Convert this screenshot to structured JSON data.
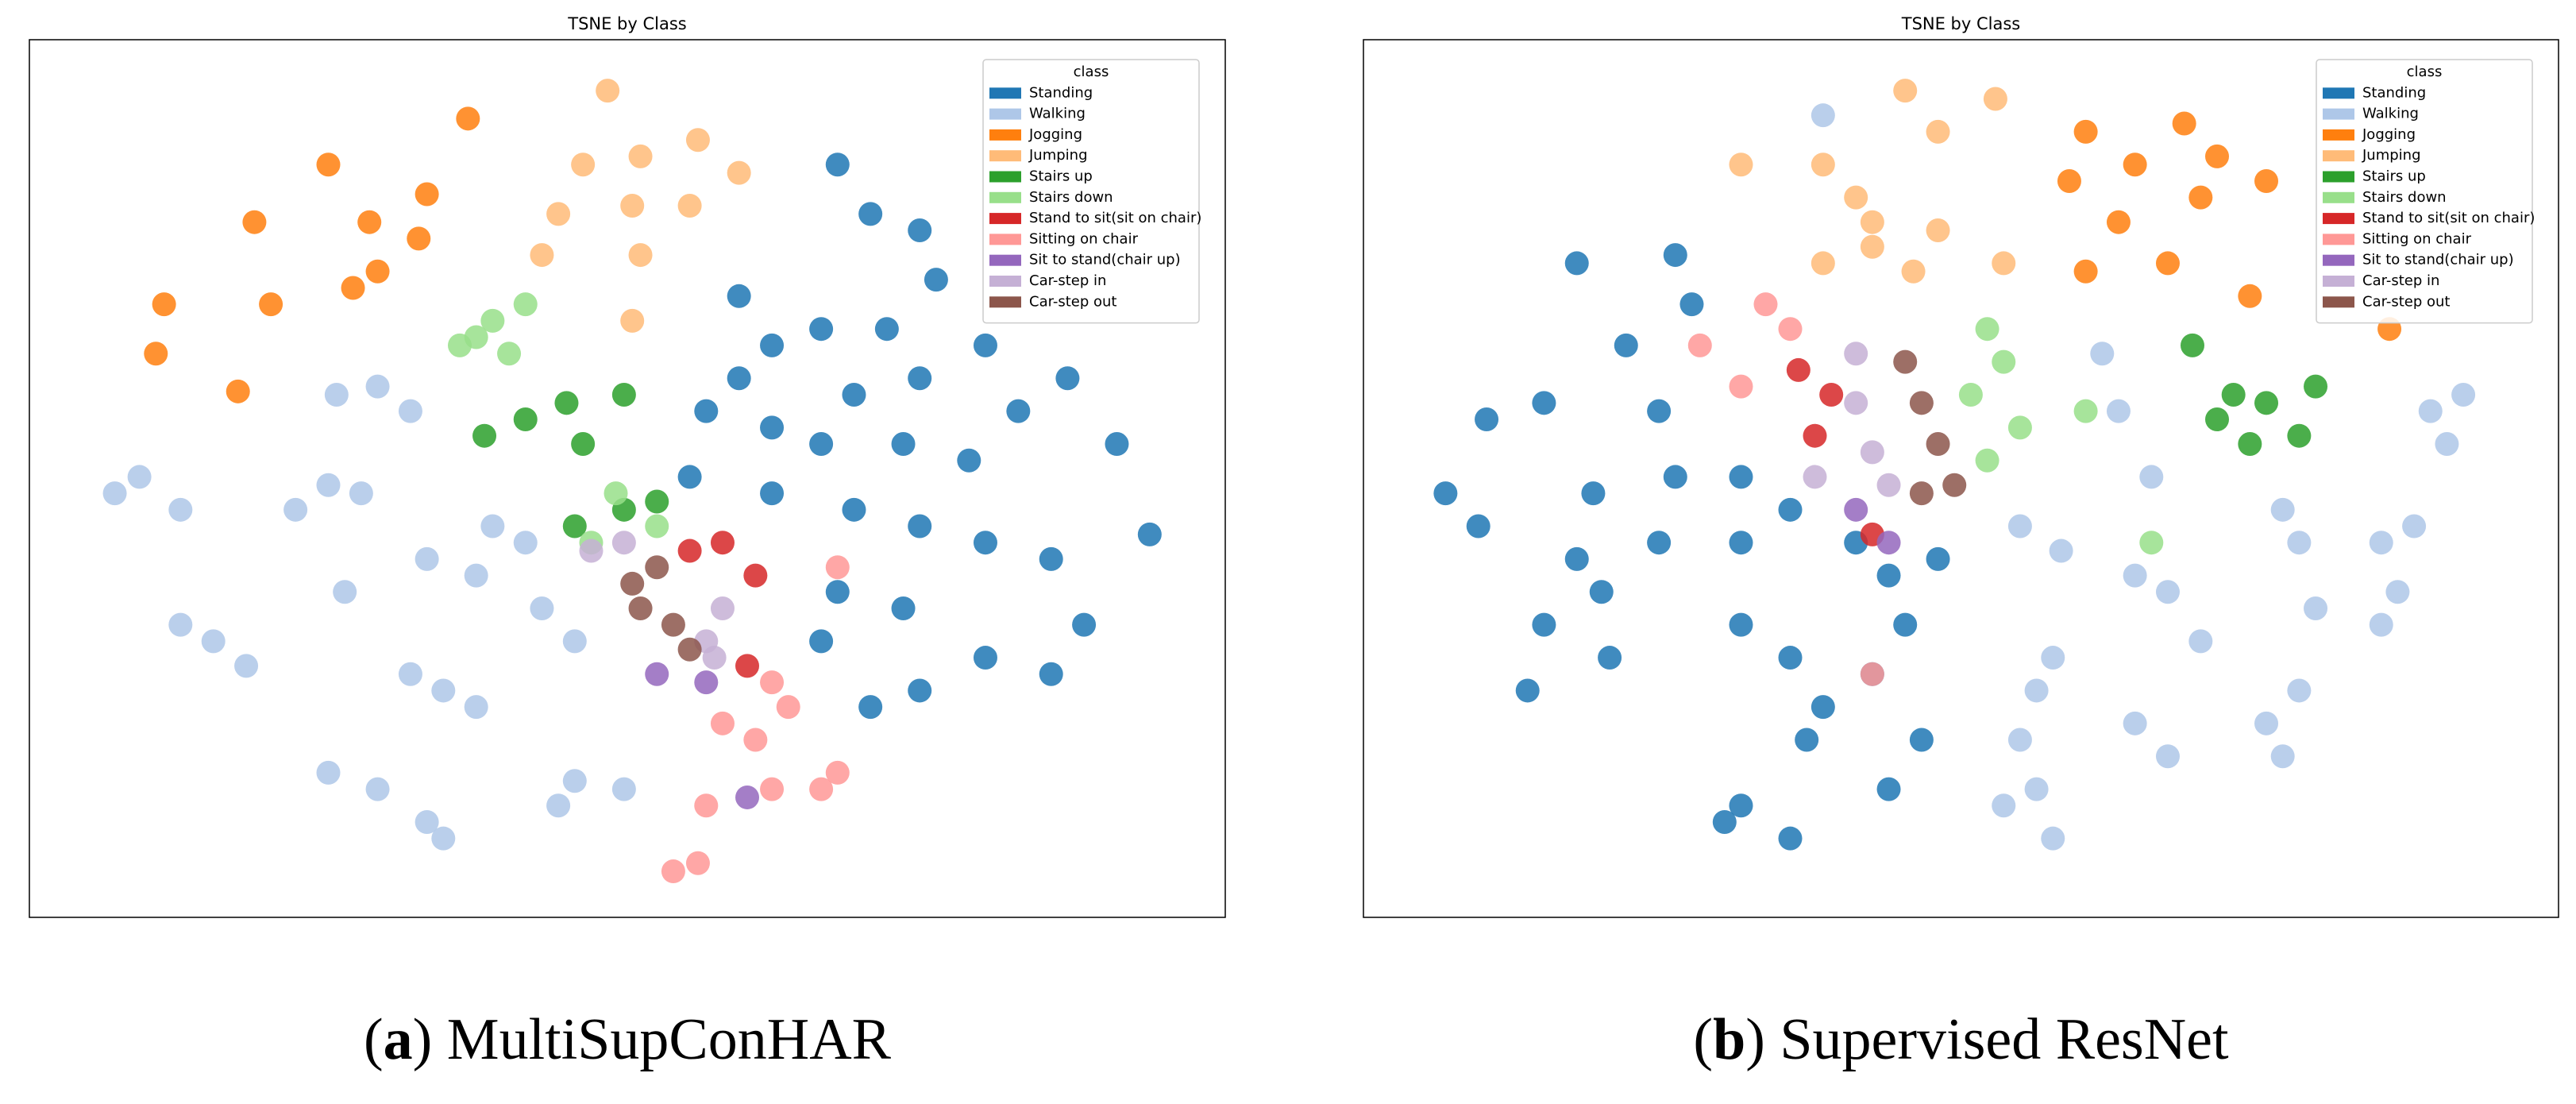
{
  "chart_data": [
    {
      "type": "scatter",
      "title": "TSNE by Class",
      "caption": [
        "(",
        "a",
        ") MultiSupConHAR"
      ],
      "legend_title": "class",
      "legend": "upper right",
      "grid": false,
      "xlim": [
        0,
        728
      ],
      "ylim": [
        0,
        534
      ],
      "series": [
        {
          "name": "Standing",
          "color": "#1f77b4",
          "x": [
            492,
            512,
            542,
            552,
            432,
            452,
            482,
            522,
            502,
            542,
            582,
            602,
            632,
            662,
            572,
            532,
            482,
            412,
            402,
            452,
            502,
            542,
            582,
            622,
            642,
            622,
            582,
            542,
            512,
            482,
            492,
            532,
            452,
            682,
            432
          ],
          "y": [
            458,
            428,
            418,
            388,
            378,
            348,
            358,
            358,
            318,
            328,
            348,
            308,
            328,
            288,
            278,
            288,
            288,
            308,
            268,
            258,
            248,
            238,
            228,
            218,
            178,
            148,
            158,
            138,
            128,
            168,
            198,
            188,
            298,
            233,
            328
          ]
        },
        {
          "name": "Walking",
          "color": "#aec7e8",
          "x": [
            212,
            187,
            232,
            67,
            52,
            92,
            182,
            162,
            202,
            192,
            112,
            92,
            132,
            252,
            232,
            272,
            332,
            322,
            362,
            212,
            182,
            242,
            252,
            282,
            302,
            312,
            332,
            272,
            242
          ],
          "y": [
            323,
            318,
            308,
            268,
            258,
            248,
            263,
            248,
            258,
            198,
            168,
            178,
            153,
            138,
            148,
            128,
            83,
            68,
            78,
            78,
            88,
            58,
            48,
            238,
            228,
            188,
            168,
            208,
            218
          ]
        },
        {
          "name": "Jogging",
          "color": "#ff7f0e",
          "x": [
            267,
            182,
            242,
            137,
            207,
            237,
            147,
            197,
            82,
            77,
            127,
            212
          ],
          "y": [
            486,
            458,
            440,
            423,
            423,
            413,
            373,
            383,
            373,
            343,
            320,
            393
          ]
        },
        {
          "name": "Jumping",
          "color": "#ffbb78",
          "x": [
            352,
            337,
            372,
            407,
            432,
            322,
            367,
            402,
            372,
            312,
            367
          ],
          "y": [
            503,
            458,
            463,
            473,
            453,
            428,
            433,
            433,
            403,
            403,
            363
          ]
        },
        {
          "name": "Stairs up",
          "color": "#2ca02c",
          "x": [
            277,
            302,
            327,
            337,
            362,
            382,
            362,
            332
          ],
          "y": [
            293,
            303,
            313,
            288,
            318,
            253,
            248,
            238
          ]
        },
        {
          "name": "Stairs down",
          "color": "#98df8a",
          "x": [
            282,
            302,
            272,
            292,
            262,
            357,
            382,
            342
          ],
          "y": [
            363,
            373,
            353,
            343,
            348,
            258,
            238,
            228
          ]
        },
        {
          "name": "Stand to sit(sit on chair)",
          "color": "#d62728",
          "x": [
            442,
            422,
            437,
            402
          ],
          "y": [
            208,
            228,
            153,
            223
          ]
        },
        {
          "name": "Sitting on chair",
          "color": "#ff9896",
          "x": [
            392,
            407,
            412,
            452,
            482,
            492,
            422,
            442,
            462,
            452,
            492
          ],
          "y": [
            28,
            33,
            68,
            78,
            78,
            88,
            118,
            108,
            128,
            143,
            213
          ]
        },
        {
          "name": "Sit to stand(chair up)",
          "color": "#9467bd",
          "x": [
            382,
            412,
            437
          ],
          "y": [
            148,
            143,
            73
          ]
        },
        {
          "name": "Car-step in",
          "color": "#c5b0d5",
          "x": [
            422,
            412,
            417,
            362,
            342
          ],
          "y": [
            188,
            168,
            158,
            228,
            223
          ]
        },
        {
          "name": "Car-step out",
          "color": "#8c564b",
          "x": [
            372,
            392,
            382,
            402,
            367
          ],
          "y": [
            188,
            178,
            213,
            163,
            203
          ]
        }
      ]
    },
    {
      "type": "scatter",
      "title": "TSNE by Class",
      "caption": [
        "(",
        "b",
        ") Supervised ResNet"
      ],
      "legend_title": "class",
      "legend": "upper right",
      "grid": false,
      "xlim": [
        0,
        728
      ],
      "ylim": [
        0,
        534
      ],
      "series": [
        {
          "name": "Standing",
          "color": "#1f77b4",
          "x": [
            130,
            190,
            200,
            160,
            75,
            110,
            50,
            70,
            180,
            190,
            180,
            230,
            230,
            260,
            300,
            320,
            140,
            130,
            110,
            150,
            230,
            260,
            280,
            270,
            310,
            330,
            340,
            320,
            230,
            220,
            260,
            350,
            100,
            145
          ],
          "y": [
            398,
            403,
            373,
            348,
            303,
            313,
            258,
            238,
            308,
            268,
            228,
            268,
            228,
            248,
            228,
            208,
            258,
            218,
            178,
            158,
            178,
            158,
            128,
            108,
            148,
            178,
            108,
            78,
            68,
            58,
            48,
            218,
            138,
            198
          ]
        },
        {
          "name": "Walking",
          "color": "#aec7e8",
          "x": [
            280,
            400,
            425,
            450,
            460,
            480,
            470,
            490,
            560,
            570,
            620,
            640,
            650,
            670,
            660,
            580,
            620,
            630,
            570,
            550,
            560,
            410,
            420,
            400,
            410,
            420,
            390,
            470,
            490,
            510
          ],
          "y": [
            488,
            238,
            223,
            343,
            308,
            268,
            208,
            198,
            248,
            228,
            228,
            238,
            308,
            318,
            288,
            188,
            178,
            198,
            138,
            118,
            98,
            138,
            158,
            108,
            78,
            48,
            68,
            118,
            98,
            168
          ]
        },
        {
          "name": "Jogging",
          "color": "#ff7f0e",
          "x": [
            440,
            430,
            470,
            510,
            520,
            550,
            460,
            440,
            490,
            540,
            500,
            625
          ],
          "y": [
            478,
            448,
            458,
            438,
            463,
            448,
            423,
            393,
            398,
            378,
            483,
            358
          ]
        },
        {
          "name": "Jumping",
          "color": "#ffbb78",
          "x": [
            230,
            280,
            300,
            350,
            385,
            310,
            280,
            335,
            390,
            350,
            330,
            310
          ],
          "y": [
            458,
            458,
            438,
            478,
            498,
            408,
            398,
            393,
            398,
            418,
            503,
            423
          ]
        },
        {
          "name": "Stairs up",
          "color": "#2ca02c",
          "x": [
            505,
            530,
            550,
            580,
            570,
            540,
            520
          ],
          "y": [
            348,
            318,
            313,
            323,
            293,
            288,
            303
          ]
        },
        {
          "name": "Stairs down",
          "color": "#98df8a",
          "x": [
            380,
            390,
            370,
            400,
            380,
            440,
            480
          ],
          "y": [
            358,
            338,
            318,
            298,
            278,
            308,
            228
          ]
        },
        {
          "name": "Stand to sit(sit on chair)",
          "color": "#d62728",
          "x": [
            275,
            265,
            310,
            285
          ],
          "y": [
            293,
            333,
            233,
            318
          ]
        },
        {
          "name": "Sitting on chair",
          "color": "#ff9896",
          "x": [
            205,
            245,
            260,
            230,
            310
          ],
          "y": [
            348,
            373,
            358,
            323,
            148
          ]
        },
        {
          "name": "Sit to stand(chair up)",
          "color": "#9467bd",
          "x": [
            320,
            300
          ],
          "y": [
            228,
            248
          ]
        },
        {
          "name": "Car-step in",
          "color": "#c5b0d5",
          "x": [
            300,
            300,
            310,
            320,
            275
          ],
          "y": [
            343,
            313,
            283,
            263,
            268
          ]
        },
        {
          "name": "Car-step out",
          "color": "#8c564b",
          "x": [
            330,
            340,
            350,
            360,
            340
          ],
          "y": [
            338,
            313,
            288,
            263,
            258
          ]
        }
      ]
    }
  ]
}
